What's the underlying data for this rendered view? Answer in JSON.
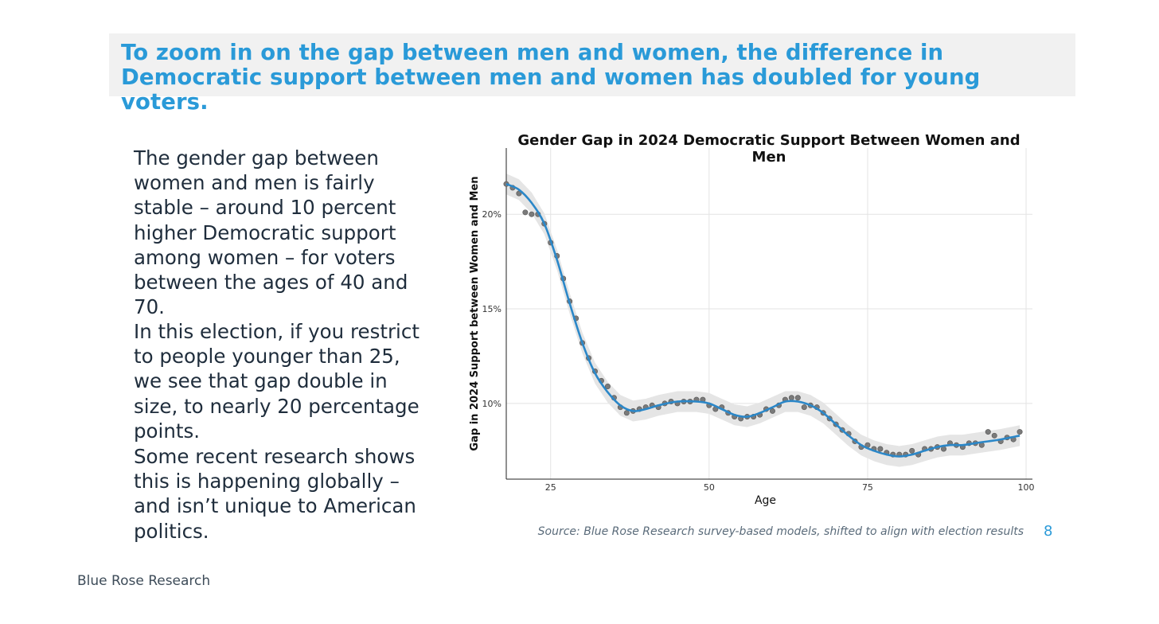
{
  "slide": {
    "headline": "To zoom in on the gap between men and women, the difference in Democratic support between men and women has doubled for young voters.",
    "paragraphs": [
      "The gender gap between women and men is fairly stable – around 10 percent higher Democratic support among women – for voters between the ages of 40 and 70.",
      "In this election, if you restrict to people younger than 25, we see that gap double in size, to nearly 20 percentage points.",
      "Some recent research shows this is happening globally – and isn’t unique to American politics."
    ],
    "source": "Source: Blue Rose Research survey-based models, shifted to align with election results",
    "page_number": "8",
    "footer": "Blue Rose Research"
  },
  "colors": {
    "accent": "#2a9ad8",
    "headline_bg": "#f1f1f1",
    "line": "#2b87c8",
    "points": "#7a7a7a",
    "band": "#e5e5e5"
  },
  "chart_data": {
    "type": "scatter",
    "title": "Gender Gap in 2024 Democratic Support Between Women and Men",
    "xlabel": "Age",
    "ylabel": "Gap in 2024 Support between Women and Men",
    "xlim": [
      18,
      101
    ],
    "ylim": [
      6.0,
      23.5
    ],
    "xticks": [
      25,
      50,
      75,
      100
    ],
    "xtick_labels": [
      "25",
      "50",
      "75",
      "100"
    ],
    "yticks": [
      10,
      15,
      20
    ],
    "ytick_labels": [
      "10%",
      "15%",
      "20%"
    ],
    "grid": true,
    "points": [
      [
        18,
        21.6
      ],
      [
        19,
        21.4
      ],
      [
        20,
        21.1
      ],
      [
        21,
        20.1
      ],
      [
        22,
        20.0
      ],
      [
        23,
        20.0
      ],
      [
        24,
        19.5
      ],
      [
        25,
        18.5
      ],
      [
        26,
        17.8
      ],
      [
        27,
        16.6
      ],
      [
        28,
        15.4
      ],
      [
        29,
        14.5
      ],
      [
        30,
        13.2
      ],
      [
        31,
        12.4
      ],
      [
        32,
        11.7
      ],
      [
        33,
        11.2
      ],
      [
        34,
        10.9
      ],
      [
        35,
        10.3
      ],
      [
        36,
        9.8
      ],
      [
        37,
        9.5
      ],
      [
        38,
        9.6
      ],
      [
        39,
        9.7
      ],
      [
        40,
        9.8
      ],
      [
        41,
        9.9
      ],
      [
        42,
        9.8
      ],
      [
        43,
        10.0
      ],
      [
        44,
        10.1
      ],
      [
        45,
        10.0
      ],
      [
        46,
        10.1
      ],
      [
        47,
        10.1
      ],
      [
        48,
        10.2
      ],
      [
        49,
        10.2
      ],
      [
        50,
        9.9
      ],
      [
        51,
        9.7
      ],
      [
        52,
        9.8
      ],
      [
        53,
        9.5
      ],
      [
        54,
        9.3
      ],
      [
        55,
        9.2
      ],
      [
        56,
        9.3
      ],
      [
        57,
        9.3
      ],
      [
        58,
        9.4
      ],
      [
        59,
        9.7
      ],
      [
        60,
        9.6
      ],
      [
        61,
        9.9
      ],
      [
        62,
        10.2
      ],
      [
        63,
        10.3
      ],
      [
        64,
        10.3
      ],
      [
        65,
        9.8
      ],
      [
        66,
        9.9
      ],
      [
        67,
        9.8
      ],
      [
        68,
        9.5
      ],
      [
        69,
        9.2
      ],
      [
        70,
        8.9
      ],
      [
        71,
        8.6
      ],
      [
        72,
        8.4
      ],
      [
        73,
        8.0
      ],
      [
        74,
        7.7
      ],
      [
        75,
        7.8
      ],
      [
        76,
        7.6
      ],
      [
        77,
        7.6
      ],
      [
        78,
        7.4
      ],
      [
        79,
        7.3
      ],
      [
        80,
        7.3
      ],
      [
        81,
        7.3
      ],
      [
        82,
        7.5
      ],
      [
        83,
        7.3
      ],
      [
        84,
        7.6
      ],
      [
        85,
        7.6
      ],
      [
        86,
        7.7
      ],
      [
        87,
        7.6
      ],
      [
        88,
        7.9
      ],
      [
        89,
        7.8
      ],
      [
        90,
        7.7
      ],
      [
        91,
        7.9
      ],
      [
        92,
        7.9
      ],
      [
        93,
        7.8
      ],
      [
        94,
        8.5
      ],
      [
        95,
        8.3
      ],
      [
        96,
        8.0
      ],
      [
        97,
        8.2
      ],
      [
        98,
        8.1
      ],
      [
        99,
        8.5
      ]
    ],
    "trend": [
      [
        18,
        21.6
      ],
      [
        20,
        21.3
      ],
      [
        22,
        20.6
      ],
      [
        24,
        19.5
      ],
      [
        26,
        17.6
      ],
      [
        28,
        15.3
      ],
      [
        30,
        13.2
      ],
      [
        32,
        11.6
      ],
      [
        34,
        10.6
      ],
      [
        36,
        9.9
      ],
      [
        38,
        9.6
      ],
      [
        40,
        9.7
      ],
      [
        42,
        9.9
      ],
      [
        45,
        10.1
      ],
      [
        48,
        10.1
      ],
      [
        50,
        10.0
      ],
      [
        52,
        9.7
      ],
      [
        54,
        9.4
      ],
      [
        56,
        9.3
      ],
      [
        58,
        9.5
      ],
      [
        60,
        9.8
      ],
      [
        62,
        10.1
      ],
      [
        64,
        10.1
      ],
      [
        66,
        9.9
      ],
      [
        68,
        9.5
      ],
      [
        70,
        8.9
      ],
      [
        72,
        8.3
      ],
      [
        74,
        7.8
      ],
      [
        76,
        7.5
      ],
      [
        78,
        7.3
      ],
      [
        80,
        7.2
      ],
      [
        82,
        7.3
      ],
      [
        84,
        7.5
      ],
      [
        86,
        7.7
      ],
      [
        88,
        7.8
      ],
      [
        90,
        7.8
      ],
      [
        92,
        7.9
      ],
      [
        94,
        8.0
      ],
      [
        96,
        8.1
      ],
      [
        99,
        8.3
      ]
    ]
  }
}
